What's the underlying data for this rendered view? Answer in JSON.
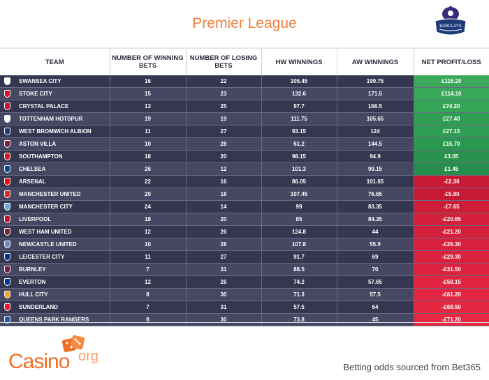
{
  "title": "Premier League",
  "logo": {
    "text": "BARCLAYS"
  },
  "columns": {
    "team": "TEAM",
    "winning_bets": "NUMBER OF WINNING BETS",
    "losing_bets": "NUMBER OF LOSING BETS",
    "hw_winnings": "HW WINNINGS",
    "aw_winnings": "AW WINNINGS",
    "net": "NET PROFIT/LOSS"
  },
  "rows": [
    {
      "team": "SWANSEA CITY",
      "win": "16",
      "lose": "22",
      "hw": "105.45",
      "aw": "199.75",
      "net": "£115.20",
      "net_color": "#3aaa5a",
      "crest": "#ffffff"
    },
    {
      "team": "STOKE CITY",
      "win": "15",
      "lose": "23",
      "hw": "132.6",
      "aw": "171.5",
      "net": "£114.10",
      "net_color": "#3aa85a",
      "crest": "#d1142b"
    },
    {
      "team": "CRYSTAL PALACE",
      "win": "13",
      "lose": "25",
      "hw": "97.7",
      "aw": "166.5",
      "net": "£74.20",
      "net_color": "#35a557",
      "crest": "#c8102e"
    },
    {
      "team": "TOTTENHAM HOTSPUR",
      "win": "19",
      "lose": "19",
      "hw": "111.75",
      "aw": "105.65",
      "net": "£27.40",
      "net_color": "#2f9d52",
      "crest": "#ffffff"
    },
    {
      "team": "WEST BROMWICH ALBION",
      "win": "11",
      "lose": "27",
      "hw": "93.15",
      "aw": "124",
      "net": "£27.15",
      "net_color": "#2f9d52",
      "crest": "#1e3a78"
    },
    {
      "team": "ASTON VILLA",
      "win": "10",
      "lose": "28",
      "hw": "61.2",
      "aw": "144.5",
      "net": "£15.70",
      "net_color": "#2b984f",
      "crest": "#7a1f46"
    },
    {
      "team": "SOUTHAMPTON",
      "win": "18",
      "lose": "20",
      "hw": "98.15",
      "aw": "94.9",
      "net": "£3.05",
      "net_color": "#28924c",
      "crest": "#d71920"
    },
    {
      "team": "CHELSEA",
      "win": "26",
      "lose": "12",
      "hw": "101.3",
      "aw": "90.15",
      "net": "£1.45",
      "net_color": "#268e4a",
      "crest": "#034694"
    },
    {
      "team": "ARSENAL",
      "win": "22",
      "lose": "16",
      "hw": "86.05",
      "aw": "101.65",
      "net": "-£2.30",
      "net_color": "#c81a34",
      "crest": "#ef0107"
    },
    {
      "team": "MANCHESTER UNITED",
      "win": "20",
      "lose": "18",
      "hw": "107.45",
      "aw": "76.65",
      "net": "-£5.90",
      "net_color": "#c81a34",
      "crest": "#da291c"
    },
    {
      "team": "MANCHESTER CITY",
      "win": "24",
      "lose": "14",
      "hw": "99",
      "aw": "83.35",
      "net": "-£7.65",
      "net_color": "#cc1c36",
      "crest": "#6cabdd"
    },
    {
      "team": "LIVERPOOL",
      "win": "18",
      "lose": "20",
      "hw": "85",
      "aw": "84.35",
      "net": "-£20.65",
      "net_color": "#d41f3a",
      "crest": "#c8102e"
    },
    {
      "team": "WEST HAM UNITED",
      "win": "12",
      "lose": "26",
      "hw": "124.8",
      "aw": "44",
      "net": "-£21.20",
      "net_color": "#d41f3a",
      "crest": "#7a263a"
    },
    {
      "team": "NEWCASTLE UNITED",
      "win": "10",
      "lose": "28",
      "hw": "107.8",
      "aw": "55.9",
      "net": "-£26.30",
      "net_color": "#d8203c",
      "crest": "#6a8fc0"
    },
    {
      "team": "LEICESTER CITY",
      "win": "11",
      "lose": "27",
      "hw": "91.7",
      "aw": "69",
      "net": "-£29.30",
      "net_color": "#da213d",
      "crest": "#003090"
    },
    {
      "team": "BURNLEY",
      "win": "7",
      "lose": "31",
      "hw": "88.5",
      "aw": "70",
      "net": "-£31.50",
      "net_color": "#dc223e",
      "crest": "#6c1d45"
    },
    {
      "team": "EVERTON",
      "win": "12",
      "lose": "26",
      "hw": "74.2",
      "aw": "57.65",
      "net": "-£58.15",
      "net_color": "#e0243f",
      "crest": "#003399"
    },
    {
      "team": "HULL CITY",
      "win": "8",
      "lose": "30",
      "hw": "71.3",
      "aw": "57.5",
      "net": "-£61.20",
      "net_color": "#e22540",
      "crest": "#f5a12d"
    },
    {
      "team": "SUNDERLAND",
      "win": "7",
      "lose": "31",
      "hw": "57.5",
      "aw": "64",
      "net": "-£68.50",
      "net_color": "#e52641",
      "crest": "#eb172b"
    },
    {
      "team": "QUEENS PARK RANGERS",
      "win": "8",
      "lose": "30",
      "hw": "73.8",
      "aw": "45",
      "net": "-£71.20",
      "net_color": "#e82742",
      "crest": "#1d5ba4"
    }
  ],
  "brand": {
    "word": "Casino",
    "suffix": "org"
  },
  "source": "Betting odds sourced from Bet365"
}
